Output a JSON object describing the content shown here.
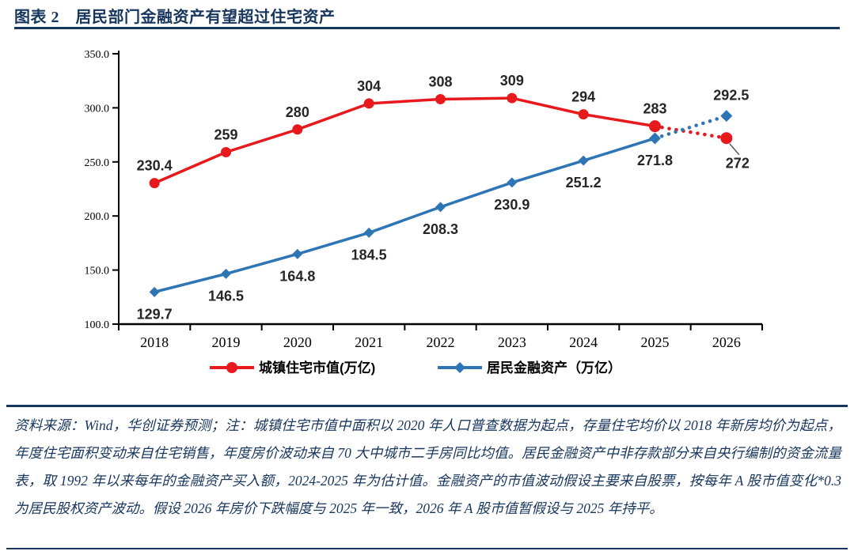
{
  "header": {
    "title": "图表 2　居民部门金融资产有望超过住宅资产"
  },
  "chart_data": {
    "type": "line",
    "categories": [
      "2018",
      "2019",
      "2020",
      "2021",
      "2022",
      "2023",
      "2024",
      "2025",
      "2026"
    ],
    "ylim": [
      100,
      350
    ],
    "ytick_step": 50,
    "ytick_labels": [
      "100.0",
      "150.0",
      "200.0",
      "250.0",
      "300.0",
      "350.0"
    ],
    "grid": false,
    "legend_position": "bottom",
    "forecast_start_index": 7,
    "forecast_style": "dotted",
    "series": [
      {
        "name": "城镇住宅市值(万亿)",
        "color": "#E8191C",
        "marker": "circle",
        "values": [
          230.4,
          259,
          280,
          304,
          308,
          309,
          294,
          283,
          272
        ],
        "point_labels": [
          "230.4",
          "259",
          "280",
          "304",
          "308",
          "309",
          "294",
          "283",
          "272"
        ],
        "label_side": "above",
        "last_label_side": "below",
        "last_point_leader": true
      },
      {
        "name": "居民金融资产（万亿）",
        "color": "#2E75B6",
        "marker": "diamond",
        "values": [
          129.7,
          146.5,
          164.8,
          184.5,
          208.3,
          230.9,
          251.2,
          271.8,
          292.5
        ],
        "point_labels": [
          "129.7",
          "146.5",
          "164.8",
          "184.5",
          "208.3",
          "230.9",
          "251.2",
          "271.8",
          "292.5"
        ],
        "label_side": "below",
        "last_label_side": "above",
        "last_point_leader": false
      }
    ]
  },
  "footnote": {
    "text": "资料来源：Wind，华创证券预测；注：城镇住宅市值中面积以 2020 年人口普查数据为起点，存量住宅均价以 2018 年新房均价为起点，年度住宅面积变动来自住宅销售，年度房价波动来自 70 大中城市二手房同比均值。居民金融资产中非存款部分来自央行编制的资金流量表，取 1992 年以来每年的金融资产买入额，2024-2025 年为估计值。金融资产的市值波动假设主要来自股票，按每年 A 股市值变化*0.3 为居民股权资产波动。假设 2026 年房价下跌幅度与 2025 年一致，2026 年 A 股市值暂假设与 2025 年持平。"
  },
  "colors": {
    "accent_navy": "#17365D",
    "series_red": "#E8191C",
    "series_blue": "#2E75B6",
    "axis": "#000000",
    "point_label": "#262626",
    "leader_line": "#595959"
  }
}
